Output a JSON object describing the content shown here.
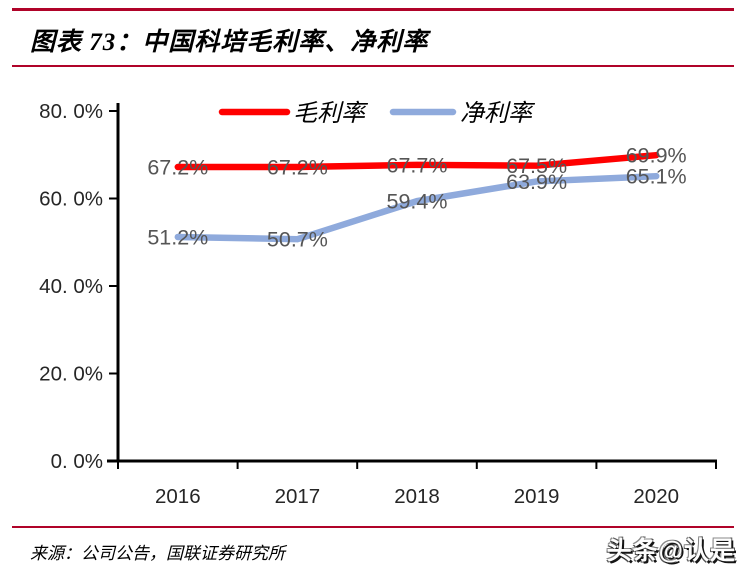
{
  "header": {
    "title": "图表 73：中国科培毛利率、净利率"
  },
  "footer": {
    "source": "来源：公司公告，国联证券研究所",
    "watermark": "头条@认是"
  },
  "colors": {
    "rule_red": "#B00329",
    "gross_margin_red": "#FF0000",
    "net_margin_blue": "#8FAADC",
    "axis_black": "#000000",
    "point_label_gray": "#555555"
  },
  "chart_data": {
    "type": "line",
    "title": "中国科培毛利率、净利率",
    "categories": [
      "2016",
      "2017",
      "2018",
      "2019",
      "2020"
    ],
    "series": [
      {
        "name": "毛利率",
        "color": "#FF0000",
        "values": [
          67.2,
          67.2,
          67.7,
          67.5,
          69.9
        ],
        "point_labels": [
          "67.2%",
          "67.2%",
          "67.7%",
          "67.5%",
          "69.9%"
        ]
      },
      {
        "name": "净利率",
        "color": "#8FAADC",
        "values": [
          51.2,
          50.7,
          59.4,
          63.9,
          65.1
        ],
        "point_labels": [
          "51.2%",
          "50.7%",
          "59.4%",
          "63.9%",
          "65.1%"
        ]
      }
    ],
    "xlabel": "",
    "ylabel": "",
    "ylim": [
      0,
      80
    ],
    "yticks": [
      {
        "value": 80,
        "label": "80. 0%"
      },
      {
        "value": 60,
        "label": "60. 0%"
      },
      {
        "value": 40,
        "label": "40. 0%"
      },
      {
        "value": 20,
        "label": "20. 0%"
      },
      {
        "value": 0,
        "label": "0. 0%"
      }
    ],
    "legend_position": "top-center",
    "grid": false
  }
}
